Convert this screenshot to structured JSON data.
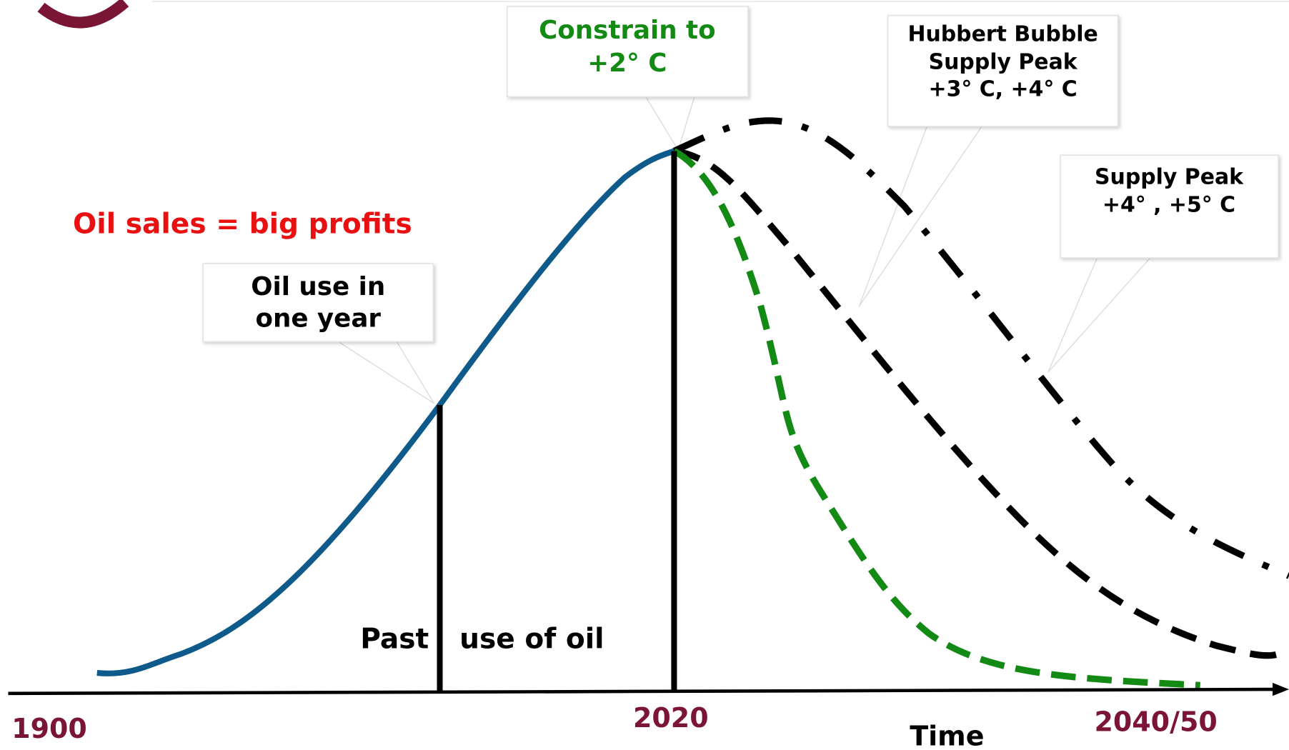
{
  "texts": {
    "headline": "Oil sales = big profits",
    "past_use": [
      "Past",
      "use of oil"
    ],
    "axis": {
      "start": "1900",
      "now": "2020",
      "end": "2040/50",
      "label": "Time"
    }
  },
  "callouts": [
    {
      "lines": [
        "Constrain to",
        "+2° C"
      ]
    },
    {
      "lines": [
        "Hubbert Bubble",
        "Supply Peak",
        "+3° C, +4° C"
      ]
    },
    {
      "lines": [
        "Supply Peak",
        "+4° , +5° C"
      ]
    },
    {
      "lines": [
        "Oil use in",
        "one year"
      ]
    }
  ]
}
